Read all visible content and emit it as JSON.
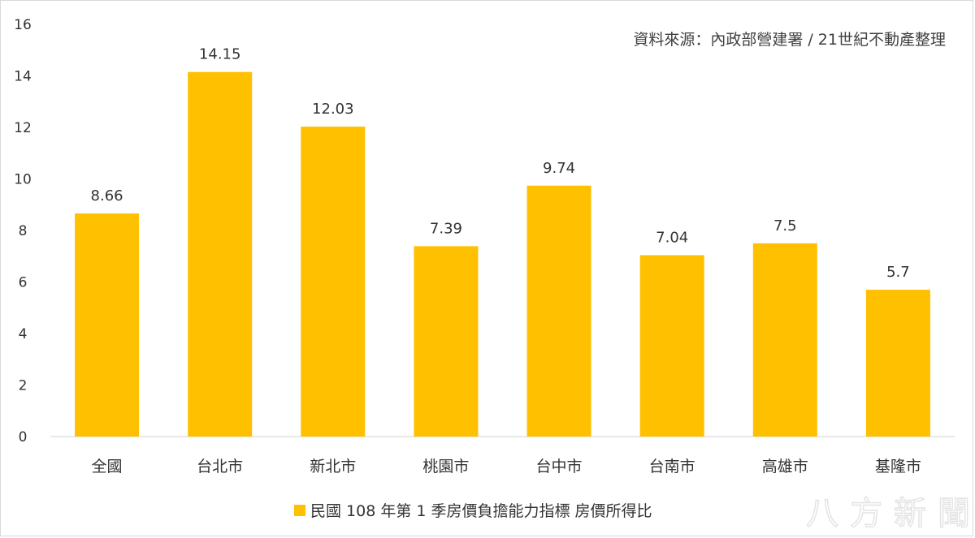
{
  "chart_data": {
    "type": "bar",
    "categories": [
      "全國",
      "台北市",
      "新北市",
      "桃園市",
      "台中市",
      "台南市",
      "高雄市",
      "基隆市"
    ],
    "series": [
      {
        "name": "民國 108 年第 1 季房價負擔能力指標 房價所得比",
        "values": [
          8.66,
          14.15,
          12.03,
          7.39,
          9.74,
          7.04,
          7.5,
          5.7
        ],
        "labels": [
          "8.66",
          "14.15",
          "12.03",
          "7.39",
          "9.74",
          "7.04",
          "7.5",
          "5.7"
        ]
      }
    ],
    "ylim": [
      0,
      16
    ],
    "yticks": [
      0,
      2,
      4,
      6,
      8,
      10,
      12,
      14,
      16
    ],
    "grid": false,
    "legend": "bottom",
    "color": "#FFC000",
    "annotation": "資料來源：內政部營建署 / 21世紀不動產整理"
  },
  "watermark": "八方新聞"
}
